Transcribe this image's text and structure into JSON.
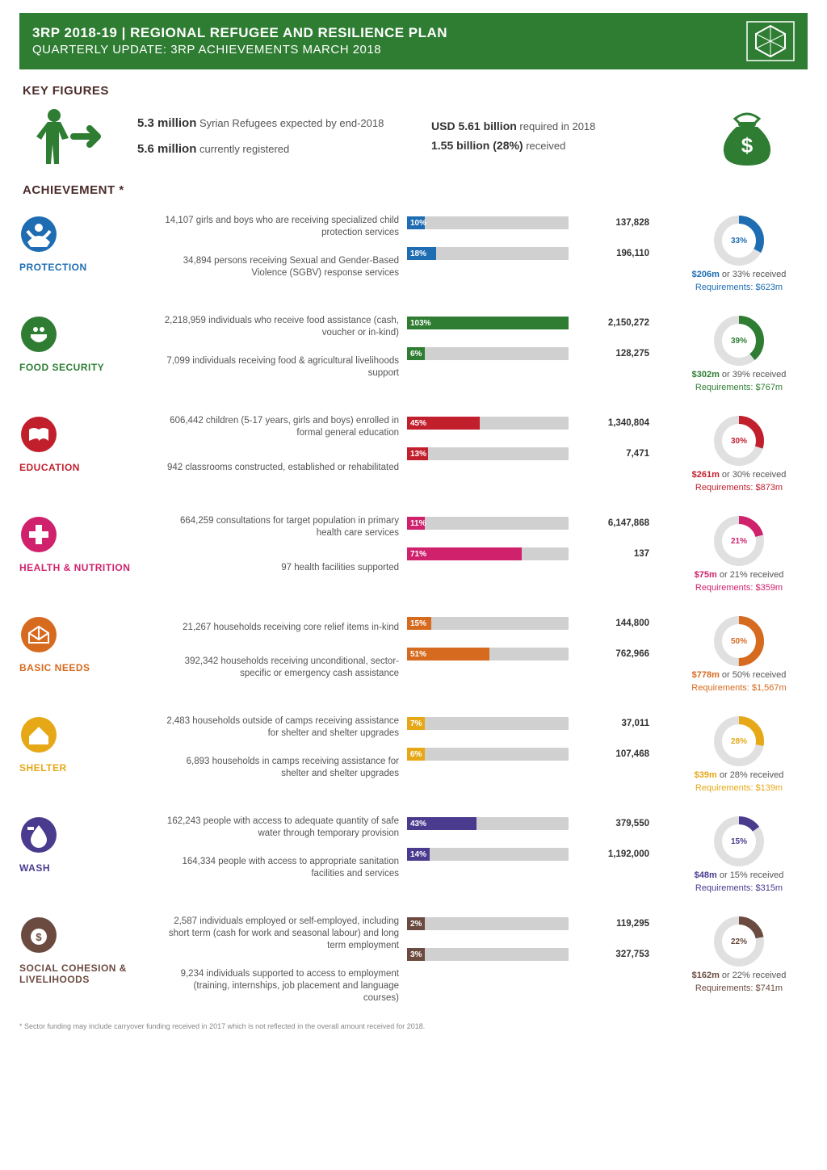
{
  "header": {
    "title": "3RP 2018-19 | REGIONAL REFUGEE AND RESILIENCE PLAN",
    "subtitle": "QUARTERLY UPDATE: 3RP ACHIEVEMENTS MARCH 2018",
    "bg_color": "#2e7d32"
  },
  "section_headings": {
    "key_figures": "KEY FIGURES",
    "achievement": "ACHIEVEMENT *"
  },
  "key_figures": {
    "refugees_expected_num": "5.3 million",
    "refugees_expected_txt": " Syrian Refugees expected by end-2018",
    "registered_num": "5.6 million",
    "registered_txt": " currently registered",
    "required_num": "USD 5.61 billion",
    "required_txt": " required in 2018",
    "received_num": "1.55 billion (28%)",
    "received_txt": " received"
  },
  "sectors": [
    {
      "id": "protection",
      "label": "PROTECTION",
      "color": "#1e6db3",
      "icon": "protection",
      "stats": [
        {
          "text": "14,107 girls and boys who are receiving specialized child protection services",
          "pct": "10%",
          "pct_num": 10,
          "target": "137,828"
        },
        {
          "text": "34,894 persons receiving Sexual and Gender-Based Violence (SGBV) response services",
          "pct": "18%",
          "pct_num": 18,
          "target": "196,110"
        }
      ],
      "funding": {
        "amount": "$206m",
        "pct_label": "33%",
        "pct_num": 33,
        "received_text": " or 33% received",
        "req": "Requirements: $623m"
      }
    },
    {
      "id": "food",
      "label": "FOOD SECURITY",
      "color": "#2e7d32",
      "icon": "food",
      "stats": [
        {
          "text": "2,218,959 individuals who receive food assistance (cash, voucher or in-kind)",
          "pct": "103%",
          "pct_num": 103,
          "target": "2,150,272"
        },
        {
          "text": "7,099 individuals receiving food & agricultural livelihoods support",
          "pct": "6%",
          "pct_num": 6,
          "target": "128,275"
        }
      ],
      "funding": {
        "amount": "$302m",
        "pct_label": "39%",
        "pct_num": 39,
        "received_text": " or 39% received",
        "req": "Requirements: $767m"
      }
    },
    {
      "id": "education",
      "label": "EDUCATION",
      "color": "#c21f2d",
      "icon": "education",
      "stats": [
        {
          "text": "606,442 children (5-17 years, girls and boys) enrolled in formal general education",
          "pct": "45%",
          "pct_num": 45,
          "target": "1,340,804"
        },
        {
          "text": "942 classrooms constructed, established or rehabilitated",
          "pct": "13%",
          "pct_num": 13,
          "target": "7,471"
        }
      ],
      "funding": {
        "amount": "$261m",
        "pct_label": "30%",
        "pct_num": 30,
        "received_text": " or 30% received",
        "req": "Requirements: $873m"
      }
    },
    {
      "id": "health",
      "label": "HEALTH & NUTRITION",
      "color": "#d0216d",
      "icon": "health",
      "stats": [
        {
          "text": "664,259 consultations for target population in primary health care services",
          "pct": "11%",
          "pct_num": 11,
          "target": "6,147,868"
        },
        {
          "text": "97 health facilities supported",
          "pct": "71%",
          "pct_num": 71,
          "target": "137"
        }
      ],
      "funding": {
        "amount": "$75m",
        "pct_label": "21%",
        "pct_num": 21,
        "received_text": " or 21% received",
        "req": "Requirements: $359m"
      }
    },
    {
      "id": "basic",
      "label": "BASIC NEEDS",
      "color": "#d66a1f",
      "icon": "basic",
      "stats": [
        {
          "text": "21,267 households receiving core relief items in-kind",
          "pct": "15%",
          "pct_num": 15,
          "target": "144,800"
        },
        {
          "text": "392,342 households receiving unconditional, sector-specific or emergency cash assistance",
          "pct": "51%",
          "pct_num": 51,
          "target": "762,966"
        }
      ],
      "funding": {
        "amount": "$778m",
        "pct_label": "50%",
        "pct_num": 50,
        "received_text": " or 50% received",
        "req": "Requirements: $1,567m"
      }
    },
    {
      "id": "shelter",
      "label": "SHELTER",
      "color": "#e6a817",
      "icon": "shelter",
      "stats": [
        {
          "text": "2,483 households outside of camps receiving assistance for shelter and shelter upgrades",
          "pct": "7%",
          "pct_num": 7,
          "target": "37,011"
        },
        {
          "text": "6,893 households in camps receiving assistance for shelter and shelter upgrades",
          "pct": "6%",
          "pct_num": 6,
          "target": "107,468"
        }
      ],
      "funding": {
        "amount": "$39m",
        "pct_label": "28%",
        "pct_num": 28,
        "received_text": " or 28% received",
        "req": "Requirements: $139m"
      }
    },
    {
      "id": "wash",
      "label": "WASH",
      "color": "#4a3b8f",
      "icon": "wash",
      "stats": [
        {
          "text": "162,243 people with access to adequate quantity of safe water through temporary provision",
          "pct": "43%",
          "pct_num": 43,
          "target": "379,550"
        },
        {
          "text": "164,334 people with access to appropriate sanitation facilities and services",
          "pct": "14%",
          "pct_num": 14,
          "target": "1,192,000"
        }
      ],
      "funding": {
        "amount": "$48m",
        "pct_label": "15%",
        "pct_num": 15,
        "received_text": " or 15% received",
        "req": "Requirements: $315m"
      }
    },
    {
      "id": "livelihoods",
      "label": "SOCIAL COHESION & LIVELIHOODS",
      "color": "#6b4a3f",
      "icon": "livelihoods",
      "stats": [
        {
          "text": "2,587 individuals employed or self-employed, including short term (cash for work and seasonal labour) and long term employment",
          "pct": "2%",
          "pct_num": 2,
          "target": "119,295"
        },
        {
          "text": "9,234 individuals supported to access to employment (training, internships, job placement and language courses)",
          "pct": "3%",
          "pct_num": 3,
          "target": "327,753"
        }
      ],
      "funding": {
        "amount": "$162m",
        "pct_label": "22%",
        "pct_num": 22,
        "received_text": " or 22% received",
        "req": "Requirements: $741m"
      }
    }
  ],
  "footnote": "* Sector funding may include carryover funding received in 2017 which is not reflected in the overall amount received for 2018.",
  "bar_bg": "#d0d0d0",
  "donut_bg": "#e0e0e0"
}
